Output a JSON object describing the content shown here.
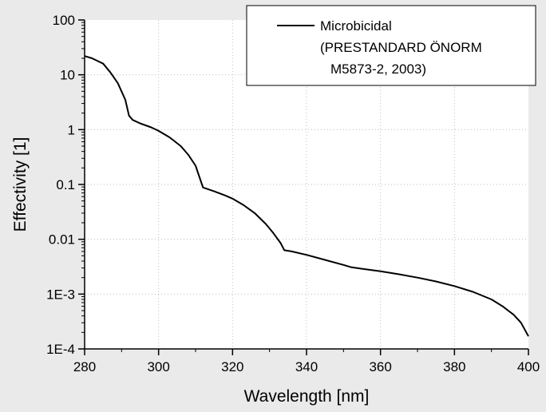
{
  "chart_data": {
    "type": "line",
    "title": "",
    "xlabel": "Wavelength [nm]",
    "ylabel": "Effectivity [1]",
    "x_scale": "linear",
    "y_scale": "log",
    "xlim": [
      280,
      400
    ],
    "ylim": [
      0.0001,
      100
    ],
    "x_ticks": [
      280,
      300,
      320,
      340,
      360,
      380,
      400
    ],
    "x_tick_labels": [
      "280",
      "300",
      "320",
      "340",
      "360",
      "380",
      "400"
    ],
    "y_ticks": [
      0.0001,
      0.001,
      0.01,
      0.1,
      1,
      10,
      100
    ],
    "y_tick_labels": [
      "1E-4",
      "1E-3",
      "0.01",
      "0.1",
      "1",
      "10",
      "100"
    ],
    "grid": true,
    "legend_position": "top-right",
    "legend_lines": [
      "Microbicidal",
      "(PRESTANDARD ÖNORM",
      "M5873-2, 2003)"
    ],
    "colors": {
      "line": "#000000",
      "grid": "#bdbdbd",
      "plot_background": "#ffffff",
      "page_background": "#eaeaea"
    },
    "series": [
      {
        "legend_label": "Microbicidal (PRESTANDARD ÖNORM M5873-2, 2003)",
        "x": [
          280,
          282,
          285,
          287,
          289,
          291,
          292,
          293,
          295,
          298,
          300,
          303,
          306,
          308,
          310,
          311,
          312,
          315,
          318,
          320,
          323,
          326,
          329,
          331,
          333,
          334,
          336,
          340,
          345,
          350,
          352,
          355,
          360,
          365,
          370,
          375,
          380,
          385,
          390,
          393,
          396,
          398,
          400
        ],
        "y": [
          22,
          20,
          16,
          11,
          7,
          3.5,
          1.8,
          1.5,
          1.3,
          1.1,
          0.95,
          0.72,
          0.5,
          0.35,
          0.22,
          0.14,
          0.088,
          0.075,
          0.063,
          0.055,
          0.042,
          0.03,
          0.019,
          0.013,
          0.0085,
          0.0063,
          0.006,
          0.0052,
          0.0042,
          0.0034,
          0.0031,
          0.0029,
          0.0026,
          0.0023,
          0.002,
          0.0017,
          0.0014,
          0.0011,
          0.0008,
          0.0006,
          0.00042,
          0.0003,
          0.00017
        ]
      }
    ]
  }
}
